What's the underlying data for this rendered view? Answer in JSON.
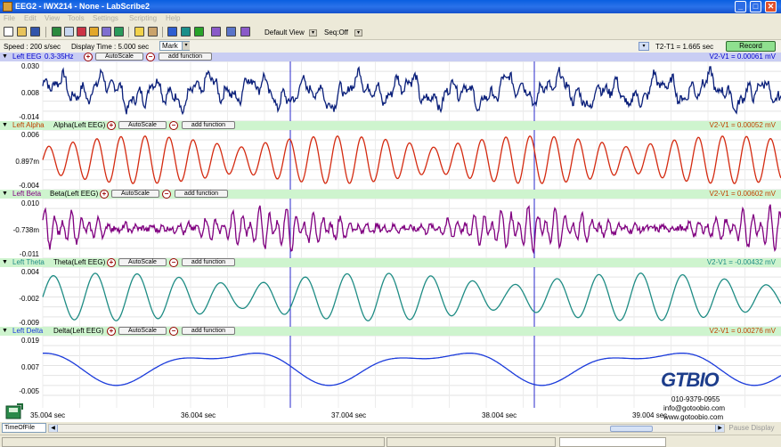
{
  "window": {
    "title": "EEG2 - IWX214 - None - LabScribe2",
    "minimize": "_",
    "maximize": "□",
    "close": "✕"
  },
  "menu": [
    "File",
    "Edit",
    "View",
    "Tools",
    "Settings",
    "Scripting",
    "Help"
  ],
  "toolbar": {
    "view_label": "Default View",
    "seq_label": "Seq:Off"
  },
  "status": {
    "speed": "Speed : 200 s/sec",
    "display_time": "Display Time : 5.000 sec",
    "mark": "Mark",
    "t2t1": "T2-T1 = 1.665 sec",
    "record": "Record"
  },
  "channels": [
    {
      "name": "Left EEG",
      "sub": "0.3-35Hz",
      "func": "",
      "vv": "V2-V1 = 0.00061 mV",
      "ticks": [
        "0.030",
        "0.008",
        "-0.014"
      ],
      "color": "#0a1f7a",
      "name_color": "#0000cc",
      "bg": "#c9cdf3",
      "autoscale": "AutoScale",
      "add": "add function"
    },
    {
      "name": "Left Alpha",
      "sub": "",
      "func": "Alpha(Left EEG)",
      "vv": "V2-V1 = 0.00052 mV",
      "ticks": [
        "0.006",
        "0.897m",
        "-0.004"
      ],
      "color": "#d42a10",
      "name_color": "#c04000",
      "bg": "#cef4ce",
      "autoscale": "AutoScale",
      "add": "add function"
    },
    {
      "name": "Left Beta",
      "sub": "",
      "func": "Beta(Left EEG)",
      "vv": "V2-V1 = 0.00602 mV",
      "ticks": [
        "0.010",
        "-0.738m",
        "-0.011"
      ],
      "color": "#800080",
      "name_color": "#800080",
      "bg": "#cef4ce",
      "autoscale": "AutoScale",
      "add": "add function"
    },
    {
      "name": "Left Theta",
      "sub": "",
      "func": "Theta(Left EEG)",
      "vv": "V2-V1 = -0.00432 mV",
      "ticks": [
        "0.004",
        "-0.002",
        "-0.009"
      ],
      "color": "#1e8c84",
      "name_color": "#1e8c84",
      "bg": "#cef4ce",
      "autoscale": "AutoScale",
      "add": "add function"
    },
    {
      "name": "Left Delta",
      "sub": "",
      "func": "Delta(Left EEG)",
      "vv": "V2-V1 = 0.00276 mV",
      "ticks": [
        "0.019",
        "0.007",
        "-0.005"
      ],
      "color": "#1a3adb",
      "name_color": "#1a3adb",
      "bg": "#cef4ce",
      "autoscale": "AutoScale",
      "add": "add function"
    }
  ],
  "time_axis": [
    "35.004 sec",
    "36.004 sec",
    "37.004 sec",
    "38.004 sec",
    "39.004 sec"
  ],
  "logo": {
    "brand": "GTBIO",
    "phone": "010-9379-0955",
    "email": "info@gotoobio.com",
    "web": "www.gotoobio.com"
  },
  "bottom": {
    "timeoffile": "TimeOfFile",
    "pause": "Pause Display"
  }
}
